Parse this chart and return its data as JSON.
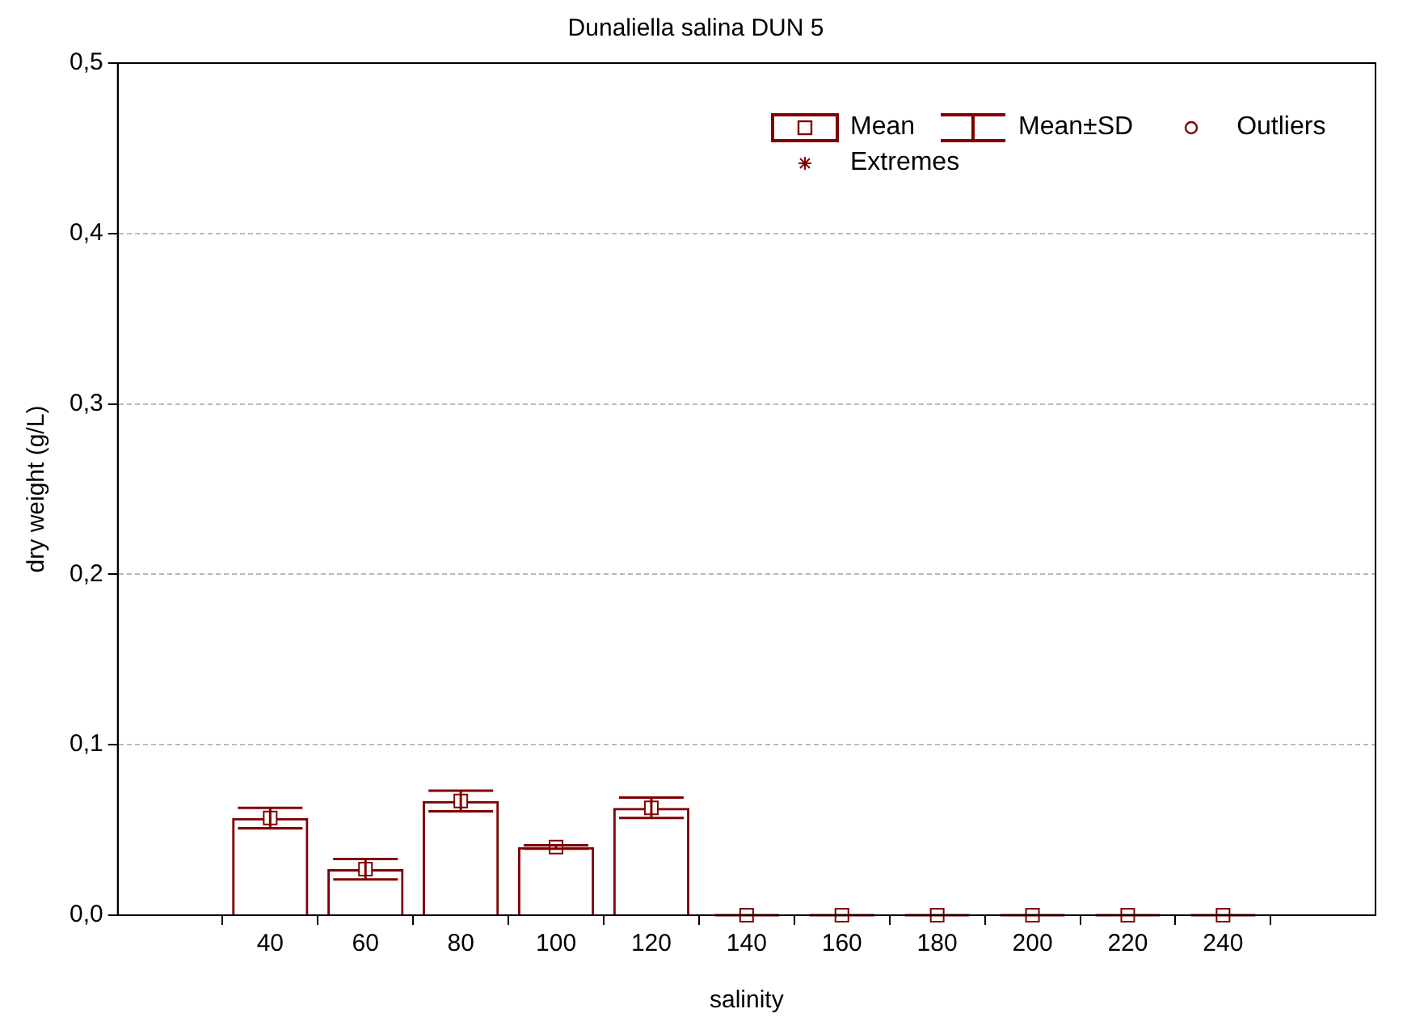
{
  "chart_data": {
    "type": "bar",
    "title": "Dunaliella salina DUN 5",
    "xlabel": "salinity",
    "ylabel": "dry weight (g/L)",
    "categories": [
      "40",
      "60",
      "80",
      "100",
      "120",
      "140",
      "160",
      "180",
      "200",
      "220",
      "240"
    ],
    "series": [
      {
        "name": "Mean",
        "marker": "square",
        "color": "#800000",
        "values": [
          0.057,
          0.027,
          0.067,
          0.04,
          0.063,
          0,
          0,
          0,
          0,
          0,
          0
        ]
      },
      {
        "name": "Mean±SD",
        "type": "scatter",
        "color": "#800000",
        "values": [
          0.057,
          0.027,
          0.067,
          0.04,
          0.063,
          0,
          0,
          0,
          0,
          0,
          0
        ],
        "errors": [
          0.006,
          0.006,
          0.006,
          0.001,
          0.006,
          0,
          0,
          0,
          0,
          0,
          0
        ]
      },
      {
        "name": "Outliers",
        "type": "scatter",
        "marker": "circle",
        "color": "#800000",
        "values": [
          null,
          null,
          null,
          null,
          null,
          null,
          null,
          null,
          null,
          null,
          null
        ]
      },
      {
        "name": "Extremes",
        "type": "scatter",
        "marker": "star",
        "color": "#800000",
        "values": [
          null,
          null,
          null,
          null,
          null,
          null,
          null,
          null,
          null,
          null,
          null
        ]
      }
    ],
    "ylim": [
      0,
      0.5
    ],
    "yticks": [
      {
        "value": 0,
        "label": "0,0"
      },
      {
        "value": 0.1,
        "label": "0,1"
      },
      {
        "value": 0.2,
        "label": "0,2"
      },
      {
        "value": 0.3,
        "label": "0,3"
      },
      {
        "value": 0.4,
        "label": "0,4"
      },
      {
        "value": 0.5,
        "label": "0,5"
      }
    ],
    "grid": "y",
    "legend": "top right"
  }
}
